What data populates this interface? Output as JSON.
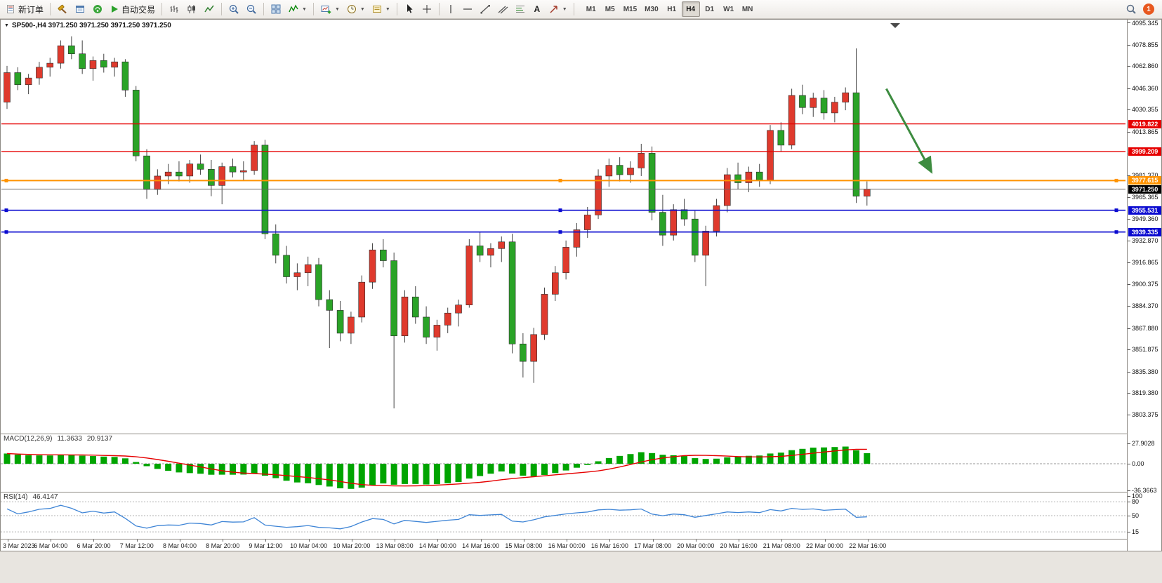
{
  "toolbar": {
    "new_order": "新订单",
    "autotrading": "自动交易",
    "text_tool": "A",
    "timeframes": [
      "M1",
      "M5",
      "M15",
      "M30",
      "H1",
      "H4",
      "D1",
      "W1",
      "MN"
    ],
    "active_timeframe": "H4",
    "notification_count": "1"
  },
  "chart": {
    "title": "SP500-,H4 3971.250 3971.250 3971.250 3971.250"
  },
  "chart_data": {
    "type": "candlestick",
    "symbol": "SP500-",
    "period": "H4",
    "up_color": "#df3a2d",
    "down_color": "#2aa327",
    "wick_color": "#444444",
    "y_axis_labels": [
      "4095.345",
      "4078.855",
      "4062.860",
      "4046.360",
      "4030.355",
      "4013.865",
      "3997.860",
      "3981.370",
      "3965.365",
      "3949.360",
      "3932.870",
      "3916.865",
      "3900.375",
      "3884.370",
      "3867.880",
      "3851.875",
      "3835.380",
      "3819.380",
      "3803.375"
    ],
    "x_axis_labels": [
      "3 Mar 2023",
      "6 Mar 04:00",
      "6 Mar 20:00",
      "7 Mar 12:00",
      "8 Mar 04:00",
      "8 Mar 20:00",
      "9 Mar 12:00",
      "10 Mar 04:00",
      "10 Mar 20:00",
      "13 Mar 08:00",
      "14 Mar 00:00",
      "14 Mar 16:00",
      "15 Mar 08:00",
      "16 Mar 00:00",
      "16 Mar 16:00",
      "17 Mar 08:00",
      "20 Mar 00:00",
      "20 Mar 16:00",
      "21 Mar 08:00",
      "22 Mar 00:00",
      "22 Mar 16:00"
    ],
    "candles": [
      [
        4036,
        4063,
        4031,
        4058
      ],
      [
        4058,
        4062,
        4045,
        4049
      ],
      [
        4049,
        4057,
        4042,
        4054
      ],
      [
        4054,
        4066,
        4049,
        4062
      ],
      [
        4062,
        4069,
        4055,
        4065
      ],
      [
        4065,
        4082,
        4061,
        4078
      ],
      [
        4078,
        4085,
        4068,
        4072
      ],
      [
        4072,
        4082,
        4057,
        4061
      ],
      [
        4061,
        4070,
        4052,
        4067
      ],
      [
        4067,
        4072,
        4058,
        4062
      ],
      [
        4062,
        4069,
        4055,
        4066
      ],
      [
        4066,
        4068,
        4040,
        4045
      ],
      [
        4045,
        4048,
        3992,
        3996
      ],
      [
        3996,
        4001,
        3964,
        3971
      ],
      [
        3971,
        3986,
        3967,
        3981
      ],
      [
        3981,
        3990,
        3975,
        3984
      ],
      [
        3984,
        3992,
        3977,
        3981
      ],
      [
        3981,
        3993,
        3976,
        3990
      ],
      [
        3990,
        3997,
        3982,
        3986
      ],
      [
        3986,
        3993,
        3966,
        3974
      ],
      [
        3974,
        3991,
        3960,
        3988
      ],
      [
        3988,
        3994,
        3980,
        3984
      ],
      [
        3984,
        3992,
        3978,
        3985
      ],
      [
        3985,
        4007,
        3982,
        4004
      ],
      [
        4004,
        4008,
        3934,
        3938
      ],
      [
        3938,
        3945,
        3916,
        3922
      ],
      [
        3922,
        3929,
        3901,
        3906
      ],
      [
        3906,
        3916,
        3896,
        3909
      ],
      [
        3909,
        3921,
        3899,
        3915
      ],
      [
        3915,
        3920,
        3884,
        3889
      ],
      [
        3889,
        3896,
        3853,
        3881
      ],
      [
        3881,
        3888,
        3858,
        3864
      ],
      [
        3864,
        3880,
        3856,
        3876
      ],
      [
        3876,
        3907,
        3872,
        3902
      ],
      [
        3902,
        3931,
        3897,
        3926
      ],
      [
        3926,
        3934,
        3913,
        3918
      ],
      [
        3918,
        3924,
        3808,
        3862
      ],
      [
        3862,
        3896,
        3857,
        3891
      ],
      [
        3891,
        3899,
        3871,
        3876
      ],
      [
        3876,
        3884,
        3856,
        3861
      ],
      [
        3861,
        3874,
        3851,
        3870
      ],
      [
        3870,
        3883,
        3864,
        3879
      ],
      [
        3879,
        3889,
        3869,
        3885
      ],
      [
        3885,
        3934,
        3883,
        3929
      ],
      [
        3929,
        3939,
        3917,
        3922
      ],
      [
        3922,
        3931,
        3913,
        3927
      ],
      [
        3927,
        3936,
        3917,
        3932
      ],
      [
        3932,
        3938,
        3849,
        3856
      ],
      [
        3856,
        3864,
        3831,
        3843
      ],
      [
        3843,
        3868,
        3827,
        3863
      ],
      [
        3863,
        3898,
        3859,
        3893
      ],
      [
        3893,
        3914,
        3888,
        3909
      ],
      [
        3909,
        3933,
        3904,
        3928
      ],
      [
        3928,
        3946,
        3921,
        3941
      ],
      [
        3941,
        3958,
        3935,
        3952
      ],
      [
        3952,
        3986,
        3949,
        3981
      ],
      [
        3981,
        3994,
        3973,
        3989
      ],
      [
        3989,
        3995,
        3977,
        3982
      ],
      [
        3982,
        3992,
        3976,
        3987
      ],
      [
        3987,
        4005,
        3981,
        3998
      ],
      [
        3998,
        4003,
        3948,
        3954
      ],
      [
        3954,
        3967,
        3929,
        3937
      ],
      [
        3937,
        3960,
        3933,
        3956
      ],
      [
        3956,
        3964,
        3944,
        3949
      ],
      [
        3949,
        3955,
        3917,
        3922
      ],
      [
        3922,
        3944,
        3899,
        3940
      ],
      [
        3940,
        3964,
        3936,
        3959
      ],
      [
        3959,
        3987,
        3954,
        3982
      ],
      [
        3982,
        3991,
        3971,
        3976
      ],
      [
        3976,
        3988,
        3969,
        3984
      ],
      [
        3984,
        3990,
        3973,
        3978
      ],
      [
        3978,
        4019,
        3975,
        4015
      ],
      [
        4015,
        4021,
        3999,
        4004
      ],
      [
        4004,
        4046,
        4001,
        4041
      ],
      [
        4041,
        4049,
        4027,
        4032
      ],
      [
        4032,
        4043,
        4025,
        4039
      ],
      [
        4039,
        4045,
        4023,
        4028
      ],
      [
        4028,
        4040,
        4021,
        4036
      ],
      [
        4036,
        4047,
        4030,
        4043
      ],
      [
        4043,
        4076,
        3961,
        3966
      ],
      [
        3966,
        3977,
        3959,
        3971.25
      ]
    ],
    "hlines": [
      {
        "label": "4019.822",
        "price": 4019.822,
        "color": "#e60000",
        "width": 1.4,
        "handles": false
      },
      {
        "label": "3999.209",
        "price": 3999.209,
        "color": "#e60000",
        "width": 1.4,
        "handles": false
      },
      {
        "label": "3977.615",
        "price": 3977.615,
        "color": "#ff9300",
        "width": 2,
        "handles": true
      },
      {
        "label": "3955.531",
        "price": 3955.531,
        "color": "#0b0bd0",
        "width": 1.6,
        "handles": true
      },
      {
        "label": "3939.335",
        "price": 3939.335,
        "color": "#0b0bd0",
        "width": 1.6,
        "handles": true
      }
    ],
    "current_price": {
      "label": "3971.250",
      "price": 3971.25,
      "line_color": "#666666",
      "tag_color": "#000000"
    },
    "trend_arrow": {
      "from_bar": 81.8,
      "from_price": 4046,
      "to_bar": 86,
      "to_price": 3984,
      "color": "#3d8c40"
    },
    "indicators": {
      "macd": {
        "name": "MACD(12,26,9)",
        "value_main": "11.3633",
        "value_signal": "20.9137",
        "fast": 12,
        "slow": 26,
        "signal": 9,
        "axis_labels": [
          "27.9028",
          "0.00",
          "-36.3663"
        ],
        "histogram_color": "#00a400",
        "signal_color": "#e60000"
      },
      "rsi": {
        "name": "RSI(14)",
        "value": "46.4147",
        "period": 14,
        "axis_labels": [
          "100",
          "80",
          "50",
          "15"
        ],
        "levels": [
          80,
          50,
          15
        ],
        "line_color": "#3f85d6"
      }
    }
  }
}
